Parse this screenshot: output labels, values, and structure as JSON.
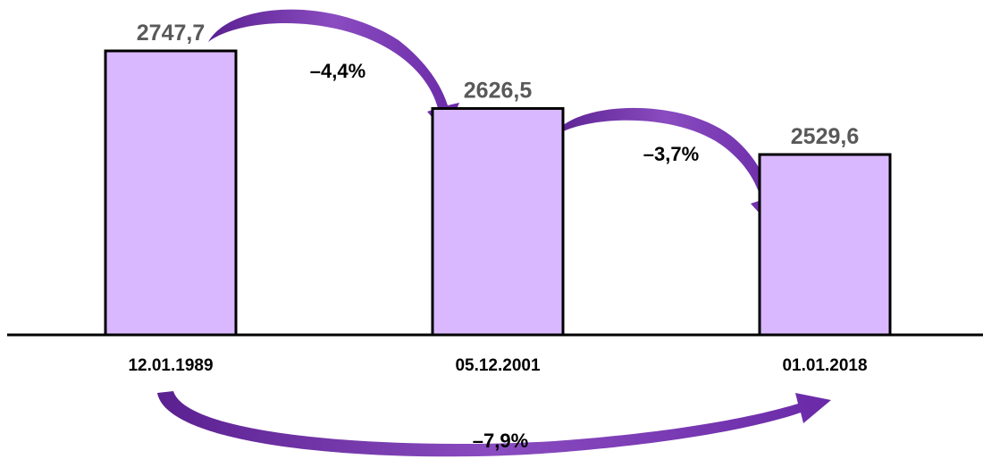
{
  "chart_data": {
    "type": "bar",
    "categories": [
      "12.01.1989",
      "05.12.2001",
      "01.01.2018"
    ],
    "values": [
      2747.7,
      2626.5,
      2529.6
    ],
    "value_labels": [
      "2747,7",
      "2626,5",
      "2529,6"
    ],
    "changes": [
      {
        "from": 0,
        "to": 1,
        "label": "–4,4%"
      },
      {
        "from": 1,
        "to": 2,
        "label": "–3,7%"
      },
      {
        "from": 0,
        "to": 2,
        "label": "–7,9%"
      }
    ],
    "title": "",
    "xlabel": "",
    "ylabel": "",
    "ylim": [
      2150,
      2800
    ],
    "grid": false,
    "legend": "none",
    "colors": {
      "bar_fill": "#d9b8ff",
      "bar_stroke": "#000000",
      "value_text": "#595959",
      "arrow": "#7030a0"
    }
  }
}
